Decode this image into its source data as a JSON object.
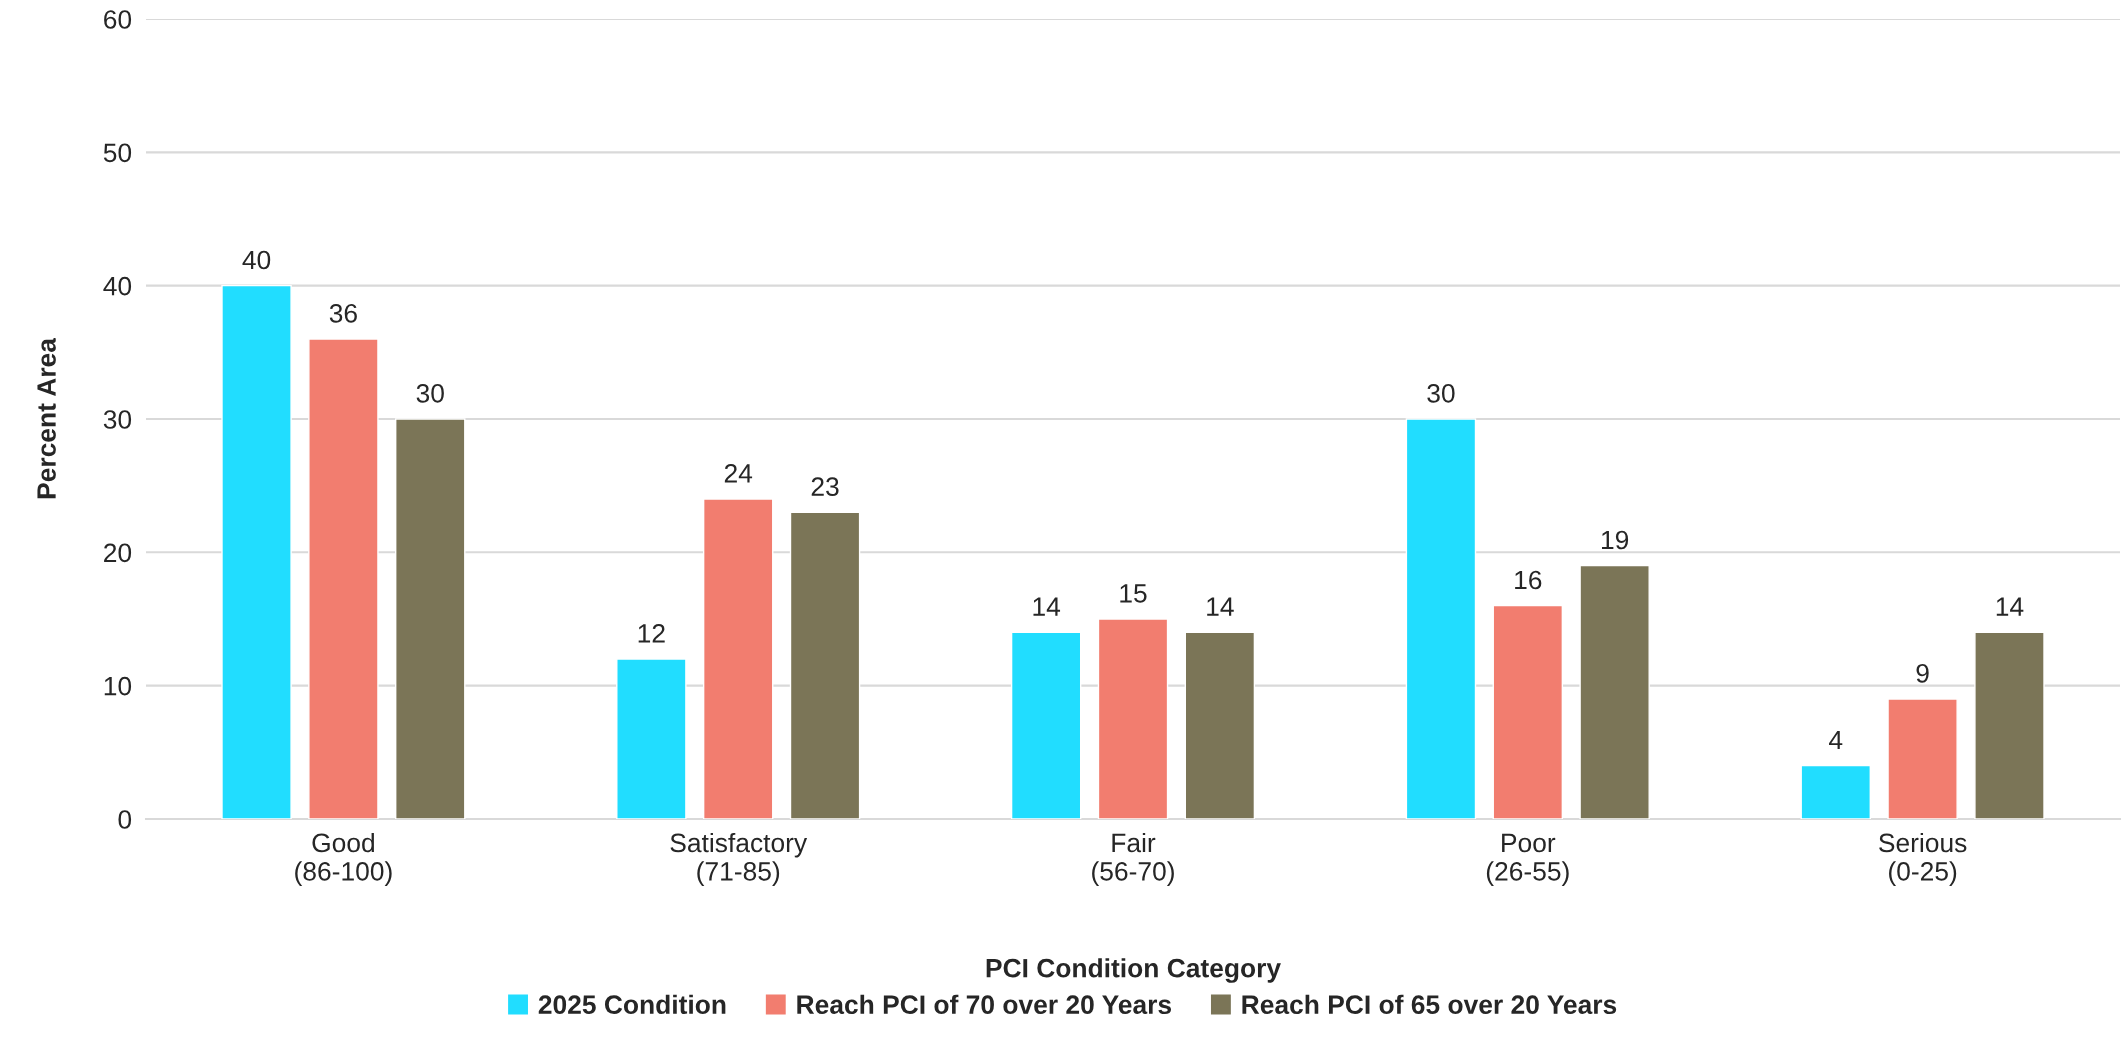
{
  "chart_data": {
    "type": "bar",
    "xlabel": "PCI Condition Category",
    "ylabel": "Percent Area",
    "categories": [
      "Good\n(86-100)",
      "Satisfactory\n(71-85)",
      "Fair\n(56-70)",
      "Poor\n(26-55)",
      "Serious\n(0-25)"
    ],
    "series": [
      {
        "name": "2025 Condition",
        "color": "#21ddff",
        "values": [
          40,
          12,
          14,
          30,
          4
        ]
      },
      {
        "name": "Reach PCI of 70 over 20 Years",
        "color": "#f27d6f",
        "values": [
          36,
          24,
          15,
          16,
          9
        ]
      },
      {
        "name": "Reach PCI of 65 over 20 Years",
        "color": "#7b7557",
        "values": [
          30,
          23,
          14,
          19,
          14
        ]
      }
    ],
    "ylim": [
      0,
      60
    ],
    "yticks": [
      0,
      10,
      20,
      30,
      40,
      50,
      60
    ],
    "grid": "y",
    "legend": "bottom",
    "data_labels": true
  }
}
